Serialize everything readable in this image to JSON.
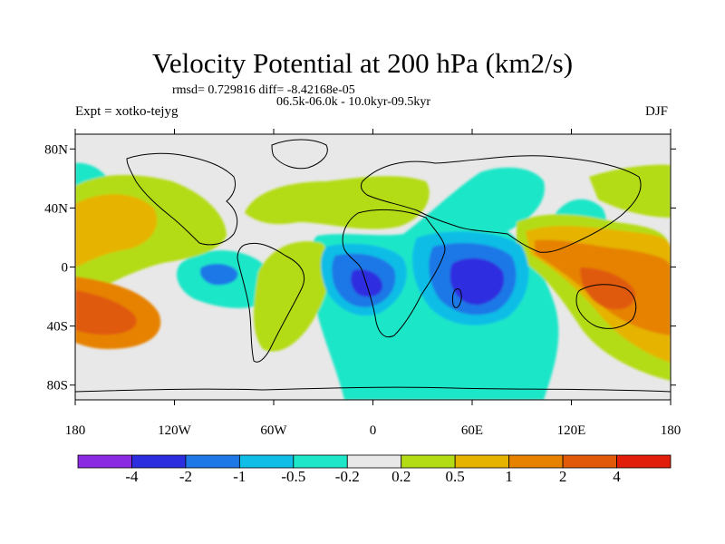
{
  "title": "Velocity Potential at 200 hPa (km2/s)",
  "stats_line": "rmsd= 0.729816 diff= -8.42168e-05",
  "period_line": "06.5k-06.0k - 10.0kyr-09.5kyr",
  "experiment_label": "Expt = xotko-tejyg",
  "season_label": "DJF",
  "lat_axis": {
    "ticks": [
      {
        "value": 80,
        "label": "80N"
      },
      {
        "value": 40,
        "label": "40N"
      },
      {
        "value": 0,
        "label": "0"
      },
      {
        "value": -40,
        "label": "40S"
      },
      {
        "value": -80,
        "label": "80S"
      }
    ]
  },
  "lon_axis": {
    "ticks": [
      {
        "value": -180,
        "label": "180"
      },
      {
        "value": -120,
        "label": "120W"
      },
      {
        "value": -60,
        "label": "60W"
      },
      {
        "value": 0,
        "label": "0"
      },
      {
        "value": 60,
        "label": "60E"
      },
      {
        "value": 120,
        "label": "120E"
      },
      {
        "value": 180,
        "label": "180"
      }
    ]
  },
  "colorbar": {
    "colors": [
      "#8a2be2",
      "#2d2de0",
      "#1e78e6",
      "#0fbde6",
      "#1ee6c8",
      "#e8e8e8",
      "#b4dc14",
      "#e6b400",
      "#e68200",
      "#e05a0a",
      "#e01e0a"
    ],
    "labels": [
      "-4",
      "-2",
      "-1",
      "-0.5",
      "-0.2",
      "0.2",
      "0.5",
      "1",
      "2",
      "4"
    ]
  },
  "colors": {
    "neg2": "#2d2de0",
    "neg1": "#1e78e6",
    "neg05": "#0fbde6",
    "neg02": "#1ee6c8",
    "neutral": "#e8e8e8",
    "pos02": "#b4dc14",
    "pos05": "#e6b400",
    "pos1": "#e68200",
    "pos2": "#e05a0a"
  }
}
